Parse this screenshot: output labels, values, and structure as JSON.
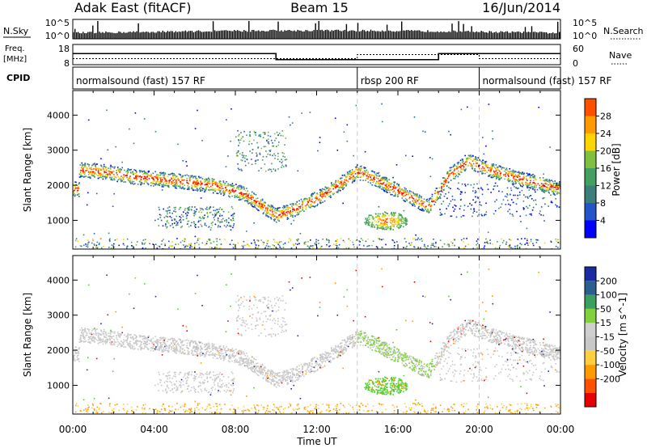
{
  "header": {
    "station": "Adak East (fitACF)",
    "beam": "Beam 15",
    "date": "16/Jun/2014"
  },
  "colors": {
    "power_scale": [
      "#0000ff",
      "#2255c8",
      "#3a7f7a",
      "#42a060",
      "#7fc040",
      "#ffd400",
      "#ff9a00",
      "#ff5000",
      "#e81800"
    ],
    "velocity_scale": [
      "#e80000",
      "#ff5000",
      "#ff9a00",
      "#ffcf40",
      "#c8c8c8",
      "#cfcfcf",
      "#80d040",
      "#3aa060",
      "#2a6090",
      "#1a2aa0"
    ]
  },
  "chart_data": [
    {
      "type": "line",
      "name": "noise-panel",
      "ylabel_left": "N.Sky",
      "ylabel_right": "N.Search",
      "yticks_left": [
        "10^5",
        "10^0"
      ],
      "yticks_right": [
        "10^5",
        "10^0"
      ]
    },
    {
      "type": "line",
      "name": "frequency-nave-panel",
      "ylabel_left": "Freq.",
      "ylabel_left_unit": "[MHz]",
      "ylabel_right": "Nave",
      "yticks_left": [
        "18",
        "8"
      ],
      "yticks_right": [
        "60",
        "0"
      ],
      "freq_segments": [
        {
          "x0": 0,
          "x1": 10,
          "y": 13.5
        },
        {
          "x0": 10,
          "x1": 18,
          "y": 10.5
        },
        {
          "x0": 18,
          "x1": 24,
          "y": 13.5
        }
      ],
      "nave_segments": [
        {
          "x0": 0,
          "x1": 14,
          "y": 18
        },
        {
          "x0": 14,
          "x1": 20,
          "y": 30
        },
        {
          "x0": 20,
          "x1": 24,
          "y": 18
        }
      ]
    },
    {
      "type": "table",
      "name": "cpid-strip",
      "label": "CPID",
      "segments": [
        {
          "start": 0,
          "end": 14,
          "text": "normalsound (fast) 157 RF"
        },
        {
          "start": 14,
          "end": 20,
          "text": "rbsp 200 RF"
        },
        {
          "start": 20,
          "end": 24,
          "text": "normalsound (fast) 157 RF"
        }
      ]
    },
    {
      "type": "heatmap",
      "name": "power-panel",
      "ylabel": "Slant Range [km]",
      "ylim": [
        180,
        4700
      ],
      "yticks": [
        "1000",
        "2000",
        "3000",
        "4000"
      ],
      "colorbar_label": "Power [dB]",
      "colorbar_ticks": [
        "28",
        "24",
        "20",
        "16",
        "12",
        "8",
        "4"
      ],
      "clim": [
        0,
        32
      ]
    },
    {
      "type": "heatmap",
      "name": "velocity-panel",
      "ylabel": "Slant Range [km]",
      "ylim": [
        180,
        4700
      ],
      "yticks": [
        "1000",
        "2000",
        "3000",
        "4000"
      ],
      "colorbar_label": "Velocity [m s^-1]",
      "colorbar_ticks": [
        "200",
        "100",
        "50",
        "15",
        "-15",
        "-50",
        "-100",
        "-200"
      ]
    }
  ],
  "xaxis": {
    "label": "Time UT",
    "ticks": [
      "00:00",
      "04:00",
      "08:00",
      "12:00",
      "16:00",
      "20:00",
      "00:00"
    ],
    "xlim": [
      0,
      24
    ]
  }
}
